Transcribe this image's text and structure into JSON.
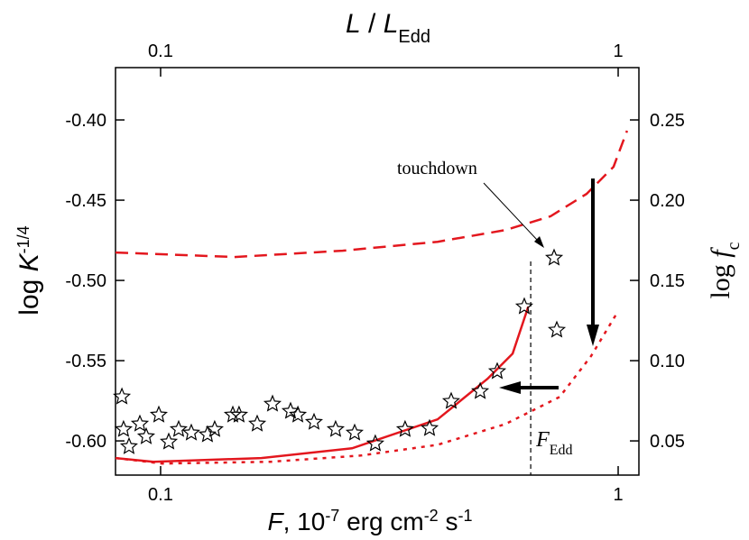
{
  "chart_data": {
    "type": "line",
    "top_label": [
      "L",
      " / ",
      "L",
      "Edd"
    ],
    "x_label": [
      "F",
      ",   10",
      "-7",
      " erg cm",
      "-2",
      " s",
      "-1"
    ],
    "y_label": [
      "log ",
      "K",
      "-1/4"
    ],
    "y2_label": [
      "log ",
      "f",
      "c"
    ],
    "log_x": true,
    "xlim": [
      0.0797,
      1.11
    ],
    "xticks": [
      0.1,
      1
    ],
    "x2lim": [
      0.0797,
      1.11
    ],
    "x2ticks": [
      0.1,
      1
    ],
    "ylim": [
      -0.6213,
      -0.3674
    ],
    "yticks": [
      {
        "value": -0.4,
        "label": "-0.40"
      },
      {
        "value": -0.45,
        "label": "-0.45"
      },
      {
        "value": -0.5,
        "label": "-0.50"
      },
      {
        "value": -0.55,
        "label": "-0.55"
      },
      {
        "value": -0.6,
        "label": "-0.60"
      }
    ],
    "y2lim": [
      0.0287,
      0.2826
    ],
    "y2ticks": [
      0.25,
      {
        "value": 0.2,
        "label": "0.20"
      },
      0.15,
      {
        "value": 0.1,
        "label": "0.10"
      },
      0.05
    ],
    "series": [
      {
        "style": "dashed",
        "color": "#e3171e",
        "x": [
          0.0797,
          0.145,
          0.25,
          0.403,
          0.567,
          0.711,
          0.853,
          0.977,
          1.046
        ],
        "values": [
          -0.4826,
          -0.4854,
          -0.4815,
          -0.4759,
          -0.4686,
          -0.4601,
          -0.4461,
          -0.4292,
          -0.4067
        ]
      },
      {
        "style": "solid",
        "color": "#e3171e",
        "x": [
          0.0797,
          0.0964,
          0.166,
          0.262,
          0.403,
          0.518,
          0.588,
          0.636
        ],
        "values": [
          -0.6107,
          -0.613,
          -0.6107,
          -0.6046,
          -0.5866,
          -0.5613,
          -0.5456,
          -0.5163
        ]
      },
      {
        "style": "dotted",
        "color": "#e3171e",
        "x": [
          0.0797,
          0.1009,
          0.174,
          0.274,
          0.403,
          0.567,
          0.745,
          0.872,
          1.0
        ],
        "values": [
          -0.6107,
          -0.6141,
          -0.613,
          -0.6091,
          -0.6024,
          -0.5895,
          -0.5726,
          -0.5472,
          -0.5191
        ]
      },
      {
        "style": "stars",
        "color": "#000000",
        "x": [
          0.0823,
          0.083,
          0.0853,
          0.0901,
          0.093,
          0.0991,
          0.1042,
          0.1095,
          0.1167,
          0.1266,
          0.1313,
          0.1438,
          0.1484,
          0.1626,
          0.1756,
          0.1923,
          0.1995,
          0.2164,
          0.2413,
          0.2655,
          0.2946,
          0.3423,
          0.3871,
          0.4316,
          0.4993,
          0.5441,
          0.6234,
          0.7244,
          0.7343
        ],
        "values": [
          -0.5725,
          -0.5928,
          -0.6035,
          -0.5894,
          -0.5973,
          -0.5838,
          -0.6006,
          -0.5928,
          -0.595,
          -0.5961,
          -0.5928,
          -0.5838,
          -0.5838,
          -0.5894,
          -0.577,
          -0.5815,
          -0.5838,
          -0.5883,
          -0.5928,
          -0.595,
          -0.6017,
          -0.5928,
          -0.5922,
          -0.5753,
          -0.5691,
          -0.5567,
          -0.5163,
          -0.486,
          -0.5309
        ]
      }
    ],
    "reference_line": {
      "x": 0.644,
      "label": [
        "F",
        "Edd"
      ]
    },
    "annotation": "touchdown"
  }
}
